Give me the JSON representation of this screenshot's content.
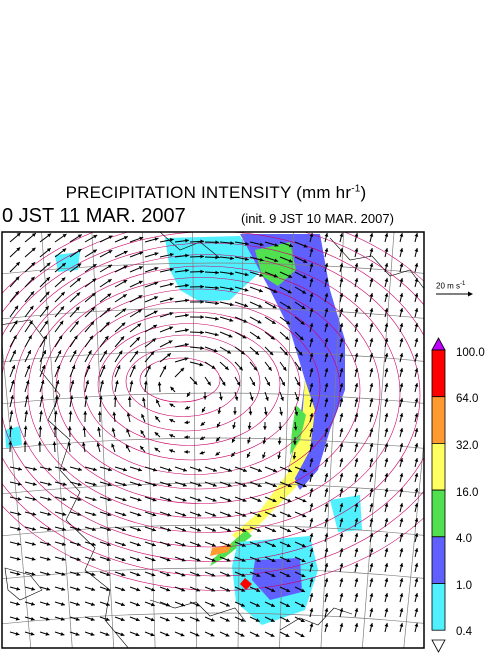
{
  "header": {
    "title_text": "PRECIPITATION INTENSITY (mm hr",
    "title_unit_exp": "-1",
    "title_close": ")",
    "valid_time": "0 JST 11 MAR. 2007",
    "init_time": "(init. 9 JST 10 MAR. 2007)"
  },
  "wind_reference": {
    "value": "20 m s",
    "exp": "-1"
  },
  "legend": {
    "bins": [
      {
        "label": "100.0",
        "color": "#ff0000"
      },
      {
        "label": "64.0",
        "color": "#ff9a30"
      },
      {
        "label": "32.0",
        "color": "#ffff60"
      },
      {
        "label": "16.0",
        "color": "#50e050"
      },
      {
        "label": "4.0",
        "color": "#6060ff"
      },
      {
        "label": "1.0",
        "color": "#50f0ff"
      },
      {
        "label": "0.4",
        "color": "#ffffff"
      }
    ],
    "over_color": "#c000ff"
  },
  "colors": {
    "isobar": "#cc0066",
    "grid": "#808080",
    "coast": "#000000",
    "wind_vector": "#000000"
  }
}
